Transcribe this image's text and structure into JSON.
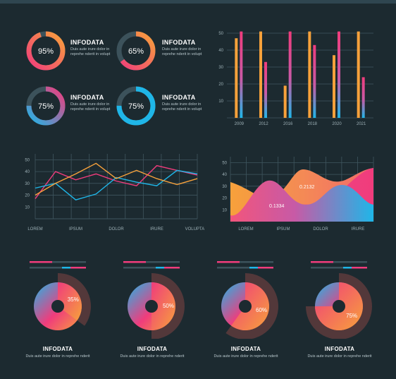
{
  "colors": {
    "background": "#1c2a30",
    "pink": "#f03c7c",
    "orange": "#f7a13b",
    "blue": "#1fb6e8",
    "track": "#3c525b",
    "grid": "#3f565f",
    "axis_text": "#9db0b6"
  },
  "chart_data": [
    {
      "type": "pie",
      "subtype": "donut-rings",
      "items": [
        {
          "value": 95,
          "label": "95%",
          "title": "INFODATA",
          "text": "Duis aute irure dolor in reprehe nderit in volupt",
          "gradient": [
            "#f03c7c",
            "#f7a13b"
          ]
        },
        {
          "value": 65,
          "label": "65%",
          "title": "INFODATA",
          "text": "Duis aute irure dolor in reprehe nderit in volupt",
          "gradient": [
            "#f03c7c",
            "#f7a13b"
          ]
        },
        {
          "value": 75,
          "label": "75%",
          "title": "INFODATA",
          "text": "Duis aute irure dolor in reprehe nderit in volupt",
          "gradient": [
            "#1fb6e8",
            "#f03c7c"
          ]
        },
        {
          "value": 75,
          "label": "75%",
          "title": "INFODATA",
          "text": "Duis aute irure dolor in reprehe nderit in volupt",
          "gradient": [
            "#1fb6e8",
            "#1fb6e8"
          ]
        }
      ]
    },
    {
      "type": "bar",
      "categories": [
        "2009",
        "2012",
        "2016",
        "2018",
        "2020",
        "2021"
      ],
      "yticks": [
        "10",
        "20",
        "30",
        "40",
        "50"
      ],
      "ylim": [
        0,
        50
      ],
      "grid": true,
      "series": [
        {
          "values": [
            47,
            51,
            19,
            51,
            37,
            51
          ],
          "gradient": [
            "#f7a13b",
            "#f7a13b"
          ]
        },
        {
          "values": [
            51,
            33,
            51,
            43,
            51,
            24
          ],
          "gradient": [
            "#f03c7c",
            "#1fb6e8"
          ]
        }
      ]
    },
    {
      "type": "line",
      "categories": [
        "LOREM",
        "IPSUM",
        "DOLOR",
        "IRURE",
        "VOLUPTATE"
      ],
      "yticks": [
        "10",
        "20",
        "30",
        "40",
        "50"
      ],
      "ylim": [
        0,
        55
      ],
      "grid": true,
      "x": [
        0,
        0.5,
        1,
        1.5,
        2,
        2.5,
        3,
        3.5,
        4
      ],
      "series": [
        {
          "color": "#f03c7c",
          "values": [
            17,
            40,
            33,
            38,
            32,
            28,
            45,
            41,
            37
          ]
        },
        {
          "color": "#1fb6e8",
          "values": [
            26,
            30,
            16,
            21,
            35,
            31,
            28,
            41,
            38
          ]
        },
        {
          "color": "#f7a13b",
          "values": [
            20,
            30,
            38,
            47,
            34,
            41,
            34,
            29,
            34
          ]
        }
      ]
    },
    {
      "type": "area",
      "categories": [
        "LOREM",
        "IPSUM",
        "DOLOR",
        "IRURE"
      ],
      "yticks": [
        "10",
        "20",
        "30",
        "40",
        "50"
      ],
      "ylim": [
        0,
        55
      ],
      "grid": true,
      "annotations": [
        "0.2132",
        "0.1334"
      ]
    },
    {
      "type": "pie",
      "items": [
        {
          "value": 35,
          "label": "35%",
          "title": "INFODATA",
          "text": "Duis aute irure dolor in reprehe nderit"
        },
        {
          "value": 50,
          "label": "50%",
          "title": "INFODATA",
          "text": "Duis aute irure dolor in reprehe nderit"
        },
        {
          "value": 60,
          "label": "60%",
          "title": "INFODATA",
          "text": "Duis aute irure dolor in reprehe nderit"
        },
        {
          "value": 75,
          "label": "75%",
          "title": "INFODATA",
          "text": "Duis aute irure dolor in reprehe nderit"
        }
      ]
    }
  ]
}
